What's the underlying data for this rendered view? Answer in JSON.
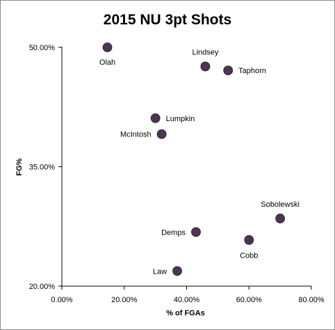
{
  "chart_data": {
    "type": "scatter",
    "title": "2015 NU 3pt Shots",
    "xlabel": "% of FGAs",
    "ylabel": "FG%",
    "xlim": [
      0,
      80
    ],
    "ylim": [
      20,
      50
    ],
    "x_ticks": [
      "0.00%",
      "20.00%",
      "40.00%",
      "60.00%",
      "80.00%"
    ],
    "y_ticks": [
      "20.00%",
      "35.00%",
      "50.00%"
    ],
    "grid": false,
    "marker_color": "#4b3553",
    "points": [
      {
        "label": "Olah",
        "x": 14.6,
        "y": 50.0
      },
      {
        "label": "Lindsey",
        "x": 46.0,
        "y": 47.6
      },
      {
        "label": "Taphorn",
        "x": 53.3,
        "y": 47.1
      },
      {
        "label": "Lumpkin",
        "x": 30.0,
        "y": 41.1
      },
      {
        "label": "McIntosh",
        "x": 32.0,
        "y": 39.1
      },
      {
        "label": "Sobolewski",
        "x": 70.0,
        "y": 28.5
      },
      {
        "label": "Demps",
        "x": 43.0,
        "y": 26.8
      },
      {
        "label": "Cobb",
        "x": 60.0,
        "y": 25.8
      },
      {
        "label": "Law",
        "x": 37.0,
        "y": 21.9
      }
    ]
  }
}
